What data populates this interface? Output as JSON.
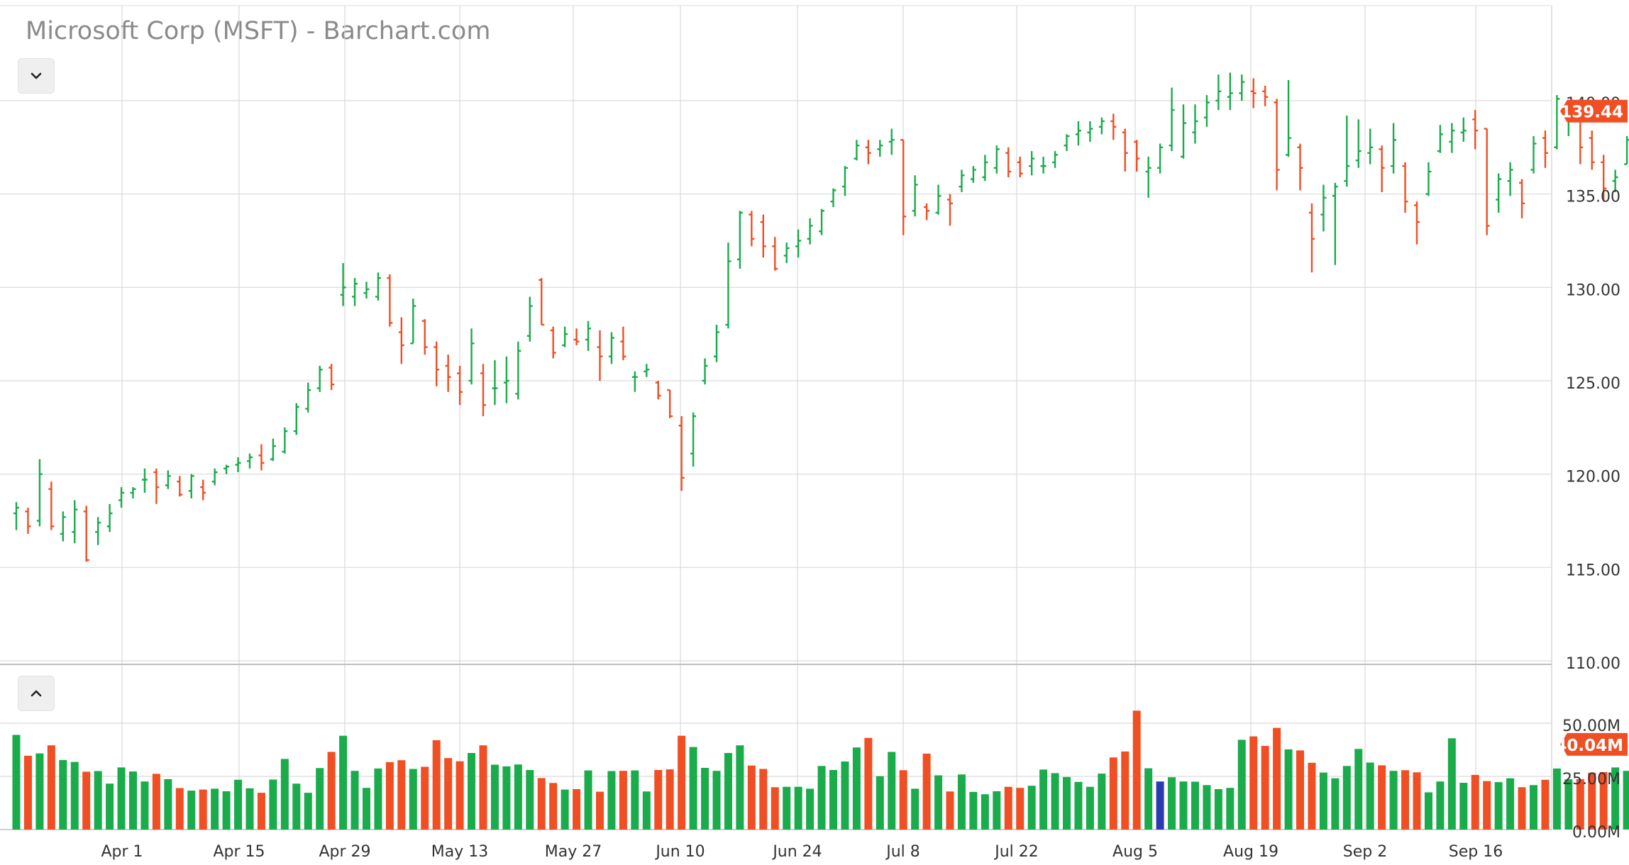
{
  "window": {
    "title": "Microsoft Corp (MSFT) - Barchart.com"
  },
  "controls": {
    "collapse_price_icon": "chevron-down-icon",
    "collapse_volume_icon": "chevron-up-icon"
  },
  "colors": {
    "up": "#1aab4b",
    "down": "#f04e23",
    "highlight_volume": "#2a3bb0",
    "grid": "#d9d9d9",
    "axis_text": "#333333",
    "badge": "#f04e23"
  },
  "chart_data": [
    {
      "type": "ohlc",
      "title": "Microsoft Corp (MSFT) - Barchart.com",
      "x_tick_labels": [
        "Apr 1",
        "Apr 15",
        "Apr 29",
        "May 13",
        "May 27",
        "Jun 10",
        "Jun 24",
        "Jul 8",
        "Jul 22",
        "Aug 5",
        "Aug 19",
        "Sep 2",
        "Sep 16"
      ],
      "y_tick_labels": [
        "110.00",
        "115.00",
        "120.00",
        "125.00",
        "130.00",
        "135.00",
        "140.00"
      ],
      "ylim": [
        110,
        145
      ],
      "grid": true,
      "last_price_label": "139.44",
      "ohlc": [
        [
          117.9,
          118.5,
          117.0,
          118.2
        ],
        [
          118.0,
          118.2,
          116.8,
          117.2
        ],
        [
          117.5,
          120.8,
          117.2,
          120.0
        ],
        [
          119.2,
          119.6,
          117.0,
          117.2
        ],
        [
          116.8,
          118.0,
          116.4,
          117.7
        ],
        [
          116.9,
          118.6,
          116.3,
          118.1
        ],
        [
          118.0,
          118.3,
          115.3,
          115.4
        ],
        [
          116.9,
          117.7,
          116.2,
          117.4
        ],
        [
          117.2,
          118.4,
          116.9,
          117.9
        ],
        [
          118.6,
          119.3,
          118.2,
          119.0
        ],
        [
          119.0,
          119.3,
          118.7,
          119.2
        ],
        [
          119.7,
          120.3,
          119.0,
          119.7
        ],
        [
          120.1,
          120.3,
          118.4,
          119.3
        ],
        [
          119.4,
          120.2,
          119.2,
          119.9
        ],
        [
          119.6,
          119.9,
          118.8,
          118.9
        ],
        [
          119.1,
          120.0,
          118.7,
          119.9
        ],
        [
          119.3,
          119.7,
          118.6,
          119.0
        ],
        [
          119.6,
          120.3,
          119.4,
          120.1
        ],
        [
          120.3,
          120.5,
          120.0,
          120.4
        ],
        [
          120.5,
          120.9,
          120.1,
          120.6
        ],
        [
          120.7,
          121.1,
          120.3,
          120.9
        ],
        [
          121.0,
          121.6,
          120.2,
          120.6
        ],
        [
          120.8,
          121.9,
          120.7,
          121.5
        ],
        [
          121.2,
          122.5,
          121.1,
          122.3
        ],
        [
          122.3,
          123.8,
          122.1,
          123.6
        ],
        [
          123.5,
          124.9,
          123.3,
          124.5
        ],
        [
          124.6,
          125.8,
          124.4,
          125.6
        ],
        [
          125.7,
          125.9,
          124.5,
          124.8
        ],
        [
          129.6,
          131.3,
          129.0,
          130.0
        ],
        [
          129.5,
          130.5,
          129.0,
          130.2
        ],
        [
          129.7,
          130.3,
          129.4,
          129.9
        ],
        [
          129.5,
          130.8,
          129.3,
          130.5
        ],
        [
          130.5,
          130.7,
          127.9,
          128.1
        ],
        [
          127.6,
          128.4,
          125.9,
          126.9
        ],
        [
          127.0,
          129.4,
          127.0,
          129.0
        ],
        [
          128.2,
          128.3,
          126.4,
          126.8
        ],
        [
          126.8,
          127.1,
          124.7,
          125.6
        ],
        [
          125.8,
          126.4,
          124.4,
          125.2
        ],
        [
          125.4,
          125.8,
          123.7,
          124.4
        ],
        [
          125.0,
          127.8,
          124.8,
          127.0
        ],
        [
          125.4,
          125.9,
          123.1,
          123.7
        ],
        [
          124.6,
          126.1,
          123.7,
          124.6
        ],
        [
          124.9,
          126.3,
          123.8,
          125.0
        ],
        [
          124.3,
          127.1,
          124.0,
          126.6
        ],
        [
          127.4,
          129.5,
          127.1,
          129.0
        ],
        [
          130.4,
          130.5,
          128.0,
          128.0
        ],
        [
          127.7,
          127.9,
          126.2,
          126.5
        ],
        [
          126.9,
          127.9,
          126.8,
          127.5
        ],
        [
          127.2,
          127.8,
          126.9,
          127.1
        ],
        [
          127.2,
          128.2,
          126.6,
          127.8
        ],
        [
          126.8,
          127.7,
          125.0,
          126.3
        ],
        [
          126.3,
          127.6,
          125.9,
          127.3
        ],
        [
          127.1,
          127.9,
          126.1,
          126.3
        ],
        [
          125.2,
          125.5,
          124.4,
          125.2
        ],
        [
          125.5,
          125.9,
          125.2,
          125.6
        ],
        [
          124.9,
          125.0,
          124.0,
          124.2
        ],
        [
          124.5,
          124.5,
          123.0,
          123.1
        ],
        [
          122.6,
          123.1,
          119.1,
          119.8
        ],
        [
          121.1,
          123.3,
          120.4,
          123.1
        ],
        [
          125.0,
          126.2,
          124.8,
          125.8
        ],
        [
          126.3,
          128.0,
          126.0,
          127.6
        ],
        [
          128.0,
          132.4,
          127.8,
          131.4
        ],
        [
          131.5,
          134.1,
          131.0,
          134.0
        ],
        [
          133.9,
          134.1,
          132.2,
          132.6
        ],
        [
          133.5,
          133.9,
          131.6,
          132.2
        ],
        [
          132.2,
          132.7,
          130.9,
          131.0
        ],
        [
          131.7,
          132.4,
          131.3,
          132.1
        ],
        [
          132.2,
          133.1,
          131.6,
          132.5
        ],
        [
          132.6,
          133.7,
          132.3,
          133.3
        ],
        [
          133.0,
          134.2,
          132.8,
          134.1
        ],
        [
          134.6,
          135.3,
          134.3,
          135.2
        ],
        [
          135.4,
          136.5,
          134.9,
          136.4
        ],
        [
          136.9,
          137.9,
          136.8,
          137.6
        ],
        [
          137.5,
          137.9,
          136.6,
          137.2
        ],
        [
          137.4,
          137.9,
          137.0,
          137.6
        ],
        [
          137.8,
          138.5,
          137.1,
          137.9
        ],
        [
          137.9,
          137.9,
          132.8,
          133.8
        ],
        [
          134.1,
          136.0,
          133.8,
          135.5
        ],
        [
          134.3,
          134.5,
          133.6,
          134.1
        ],
        [
          134.0,
          135.5,
          133.9,
          134.9
        ],
        [
          134.7,
          135.0,
          133.3,
          134.5
        ],
        [
          135.4,
          136.3,
          135.1,
          136.0
        ],
        [
          135.8,
          136.5,
          135.6,
          136.3
        ],
        [
          135.9,
          137.1,
          135.7,
          136.7
        ],
        [
          136.4,
          137.6,
          136.1,
          137.4
        ],
        [
          137.2,
          137.5,
          135.9,
          136.2
        ],
        [
          136.7,
          137.0,
          135.9,
          136.1
        ],
        [
          136.5,
          137.3,
          136.0,
          136.9
        ],
        [
          136.5,
          137.0,
          136.1,
          136.5
        ],
        [
          136.7,
          137.3,
          136.4,
          137.1
        ],
        [
          137.6,
          138.2,
          137.3,
          138.1
        ],
        [
          138.2,
          138.9,
          137.6,
          138.4
        ],
        [
          138.3,
          138.9,
          137.8,
          138.5
        ],
        [
          138.6,
          139.1,
          138.2,
          138.9
        ],
        [
          138.9,
          139.3,
          137.9,
          138.6
        ],
        [
          138.3,
          138.5,
          136.2,
          137.2
        ],
        [
          137.8,
          137.9,
          136.2,
          136.9
        ],
        [
          136.2,
          137.0,
          134.8,
          136.4
        ],
        [
          136.4,
          137.7,
          136.1,
          137.5
        ],
        [
          137.6,
          140.7,
          137.3,
          139.5
        ],
        [
          137.0,
          139.8,
          136.9,
          138.8
        ],
        [
          138.3,
          139.8,
          137.7,
          138.9
        ],
        [
          139.1,
          140.3,
          138.6,
          139.9
        ],
        [
          140.0,
          141.4,
          139.5,
          140.5
        ],
        [
          140.2,
          141.5,
          139.5,
          140.4
        ],
        [
          140.4,
          141.4,
          140.0,
          141.0
        ],
        [
          140.5,
          141.2,
          139.6,
          140.4
        ],
        [
          140.5,
          140.8,
          139.7,
          140.2
        ],
        [
          139.9,
          140.1,
          135.2,
          136.3
        ],
        [
          137.1,
          141.1,
          137.0,
          138.0
        ],
        [
          137.5,
          137.7,
          135.2,
          136.4
        ],
        [
          134.0,
          134.5,
          130.8,
          132.6
        ],
        [
          133.9,
          135.5,
          133.0,
          134.8
        ],
        [
          134.9,
          135.6,
          131.2,
          135.4
        ],
        [
          135.7,
          139.2,
          135.4,
          136.5
        ],
        [
          136.8,
          139.0,
          136.4,
          137.3
        ],
        [
          137.2,
          138.5,
          136.6,
          137.5
        ],
        [
          137.4,
          137.6,
          135.1,
          136.4
        ],
        [
          136.5,
          138.8,
          136.1,
          137.9
        ],
        [
          136.5,
          136.7,
          134.0,
          134.6
        ],
        [
          134.4,
          134.6,
          132.3,
          133.5
        ],
        [
          135.0,
          136.7,
          134.9,
          136.2
        ],
        [
          137.3,
          138.7,
          137.2,
          138.2
        ],
        [
          137.8,
          138.8,
          137.2,
          138.4
        ],
        [
          138.3,
          139.1,
          137.8,
          138.4
        ],
        [
          139.0,
          139.5,
          137.4,
          138.4
        ],
        [
          138.5,
          138.5,
          132.8,
          133.3
        ],
        [
          134.7,
          136.1,
          134.0,
          135.8
        ],
        [
          135.7,
          136.7,
          134.9,
          136.3
        ],
        [
          135.6,
          135.8,
          133.7,
          134.5
        ],
        [
          136.3,
          138.1,
          136.1,
          137.7
        ],
        [
          138.0,
          138.4,
          136.4,
          137.2
        ],
        [
          137.5,
          140.3,
          137.4,
          140.1
        ],
        [
          139.7,
          140.0,
          138.1,
          139.9
        ],
        [
          139.6,
          139.9,
          136.6,
          137.5
        ],
        [
          138.0,
          138.4,
          136.3,
          136.7
        ],
        [
          136.7,
          137.1,
          134.6,
          135.3
        ],
        [
          135.7,
          136.3,
          135.1,
          135.9
        ],
        [
          136.6,
          138.1,
          136.6,
          137.9
        ],
        [
          138.1,
          138.6,
          137.6,
          138.3
        ],
        [
          137.7,
          137.9,
          136.8,
          137.0
        ],
        [
          136.5,
          136.7,
          135.7,
          136.1
        ],
        [
          136.0,
          137.6,
          135.9,
          137.3
        ],
        [
          137.2,
          138.6,
          136.6,
          138.0
        ],
        [
          138.4,
          142.6,
          138.0,
          141.2
        ],
        [
          141.1,
          141.6,
          138.2,
          139.4
        ]
      ],
      "colors": {
        "up": "#1aab4b",
        "down": "#f04e23"
      }
    },
    {
      "type": "bar",
      "title": "Volume",
      "y_tick_labels": [
        "0.00M",
        "25.00M",
        "50.00M"
      ],
      "ylim": [
        0,
        58
      ],
      "last_volume_label": "40.04M",
      "highlight_index": 98,
      "volume": [
        44.5,
        34.7,
        35.8,
        39.6,
        32.7,
        31.8,
        27.2,
        27.5,
        21.6,
        29.2,
        27.3,
        22.6,
        26.2,
        23.7,
        19.5,
        18.3,
        18.8,
        19.2,
        18.0,
        23.4,
        19.4,
        17.3,
        23.5,
        33.2,
        21.6,
        17.3,
        28.9,
        36.5,
        44.1,
        27.6,
        19.6,
        28.7,
        31.7,
        32.6,
        28.5,
        29.5,
        42.0,
        33.6,
        32.1,
        36.0,
        39.6,
        30.5,
        29.7,
        30.6,
        28.0,
        24.2,
        21.9,
        18.8,
        19.0,
        27.8,
        17.8,
        27.5,
        27.6,
        27.8,
        17.9,
        28.0,
        28.3,
        44.1,
        38.8,
        29.0,
        27.6,
        36.0,
        39.6,
        30.1,
        28.5,
        19.9,
        20.1,
        20.1,
        19.2,
        29.9,
        28.0,
        32.0,
        38.6,
        43.1,
        25.1,
        36.5,
        27.9,
        19.2,
        35.7,
        25.5,
        17.9,
        25.9,
        17.7,
        16.6,
        18.0,
        20.1,
        19.6,
        20.6,
        28.2,
        26.5,
        24.7,
        22.4,
        20.1,
        26.3,
        33.9,
        36.7,
        55.9,
        28.8,
        22.6,
        24.6,
        22.6,
        22.5,
        20.9,
        19.0,
        19.6,
        42.2,
        43.8,
        39.3,
        47.8,
        37.7,
        37.2,
        31.4,
        26.8,
        24.1,
        29.9,
        37.9,
        31.5,
        30.2,
        27.6,
        27.9,
        26.9,
        17.5,
        22.6,
        42.9,
        22.0,
        25.7,
        22.8,
        22.3,
        24.1,
        19.9,
        20.9,
        23.4,
        28.7,
        23.6,
        23.7,
        26.7,
        27.0,
        29.2,
        27.6,
        26.8,
        23.2,
        19.4,
        20.0,
        25.3,
        36.0,
        40.0
      ],
      "colors": {
        "up": "#1aab4b",
        "down": "#f04e23",
        "highlight": "#2a3bb0"
      }
    }
  ]
}
